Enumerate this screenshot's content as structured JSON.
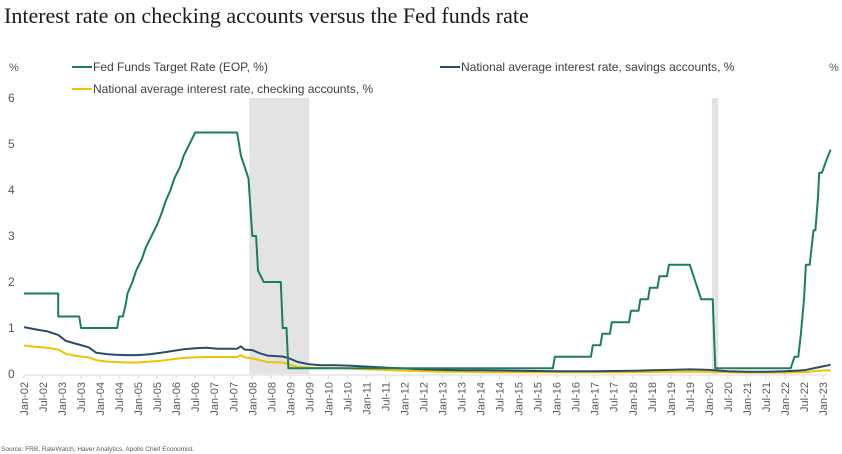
{
  "chart_data": {
    "type": "line",
    "title": "Interest rate on checking accounts versus the Fed funds rate",
    "ylabel_left": "%",
    "ylabel_right": "%",
    "xlabel": "",
    "ylim": [
      0,
      6
    ],
    "yticks": [
      0,
      1,
      2,
      3,
      4,
      5,
      6
    ],
    "xlim": [
      "2002-01",
      "2023-03"
    ],
    "xticks": [
      "Jan-02",
      "Jul-02",
      "Jan-03",
      "Jul-03",
      "Jan-04",
      "Jul-04",
      "Jan-05",
      "Jul-05",
      "Jan-06",
      "Jul-06",
      "Jan-07",
      "Jul-07",
      "Jan-08",
      "Jul-08",
      "Jan-09",
      "Jul-09",
      "Jan-10",
      "Jul-10",
      "Jan-11",
      "Jul-11",
      "Jan-12",
      "Jul-12",
      "Jan-13",
      "Jul-13",
      "Jan-14",
      "Jul-14",
      "Jan-15",
      "Jul-15",
      "Jan-16",
      "Jul-16",
      "Jan-17",
      "Jul-17",
      "Jan-18",
      "Jul-18",
      "Jan-19",
      "Jul-19",
      "Jan-20",
      "Jul-20",
      "Jan-21",
      "Jul-21",
      "Jan-22",
      "Jul-22",
      "Jan-23"
    ],
    "grid": false,
    "legend_position": "top",
    "recessions": [
      {
        "start": 2007.92,
        "end": 2009.5
      },
      {
        "start": 2020.08,
        "end": 2020.25
      }
    ],
    "series": [
      {
        "name": "Fed Funds Target Rate (EOP, %)",
        "color": "#1a7f5f",
        "points": [
          [
            2002.0,
            1.75
          ],
          [
            2002.9,
            1.75
          ],
          [
            2002.9,
            1.25
          ],
          [
            2003.45,
            1.25
          ],
          [
            2003.5,
            1.0
          ],
          [
            2004.45,
            1.0
          ],
          [
            2004.5,
            1.25
          ],
          [
            2004.6,
            1.25
          ],
          [
            2004.67,
            1.5
          ],
          [
            2004.72,
            1.75
          ],
          [
            2004.85,
            2.0
          ],
          [
            2004.95,
            2.25
          ],
          [
            2005.1,
            2.5
          ],
          [
            2005.2,
            2.75
          ],
          [
            2005.35,
            3.0
          ],
          [
            2005.5,
            3.25
          ],
          [
            2005.62,
            3.5
          ],
          [
            2005.72,
            3.75
          ],
          [
            2005.85,
            4.0
          ],
          [
            2005.95,
            4.25
          ],
          [
            2006.1,
            4.5
          ],
          [
            2006.2,
            4.75
          ],
          [
            2006.35,
            5.0
          ],
          [
            2006.5,
            5.25
          ],
          [
            2007.6,
            5.25
          ],
          [
            2007.7,
            4.75
          ],
          [
            2007.8,
            4.5
          ],
          [
            2007.9,
            4.25
          ],
          [
            2008.0,
            3.0
          ],
          [
            2008.1,
            3.0
          ],
          [
            2008.15,
            2.25
          ],
          [
            2008.3,
            2.0
          ],
          [
            2008.75,
            2.0
          ],
          [
            2008.8,
            1.0
          ],
          [
            2008.9,
            1.0
          ],
          [
            2008.95,
            0.125
          ],
          [
            2015.9,
            0.125
          ],
          [
            2015.95,
            0.375
          ],
          [
            2016.9,
            0.375
          ],
          [
            2016.95,
            0.625
          ],
          [
            2017.15,
            0.625
          ],
          [
            2017.2,
            0.875
          ],
          [
            2017.4,
            0.875
          ],
          [
            2017.45,
            1.125
          ],
          [
            2017.9,
            1.125
          ],
          [
            2017.95,
            1.375
          ],
          [
            2018.15,
            1.375
          ],
          [
            2018.2,
            1.625
          ],
          [
            2018.4,
            1.625
          ],
          [
            2018.45,
            1.875
          ],
          [
            2018.65,
            1.875
          ],
          [
            2018.7,
            2.125
          ],
          [
            2018.9,
            2.125
          ],
          [
            2018.95,
            2.375
          ],
          [
            2019.5,
            2.375
          ],
          [
            2019.6,
            2.125
          ],
          [
            2019.7,
            1.875
          ],
          [
            2019.8,
            1.625
          ],
          [
            2020.1,
            1.625
          ],
          [
            2020.17,
            0.125
          ],
          [
            2022.15,
            0.125
          ],
          [
            2022.25,
            0.375
          ],
          [
            2022.35,
            0.375
          ],
          [
            2022.42,
            0.875
          ],
          [
            2022.5,
            1.625
          ],
          [
            2022.55,
            2.375
          ],
          [
            2022.65,
            2.375
          ],
          [
            2022.75,
            3.125
          ],
          [
            2022.8,
            3.125
          ],
          [
            2022.87,
            3.875
          ],
          [
            2022.9,
            4.375
          ],
          [
            2022.97,
            4.375
          ],
          [
            2023.08,
            4.625
          ],
          [
            2023.2,
            4.875
          ]
        ]
      },
      {
        "name": "National average interest rate, savings accounts, %",
        "color": "#2e4a6b",
        "points": [
          [
            2002.0,
            1.02
          ],
          [
            2002.3,
            0.97
          ],
          [
            2002.6,
            0.93
          ],
          [
            2002.9,
            0.85
          ],
          [
            2003.1,
            0.72
          ],
          [
            2003.4,
            0.65
          ],
          [
            2003.7,
            0.58
          ],
          [
            2003.9,
            0.46
          ],
          [
            2004.2,
            0.43
          ],
          [
            2004.4,
            0.42
          ],
          [
            2004.7,
            0.41
          ],
          [
            2005.0,
            0.41
          ],
          [
            2005.3,
            0.43
          ],
          [
            2005.6,
            0.46
          ],
          [
            2005.9,
            0.5
          ],
          [
            2006.2,
            0.54
          ],
          [
            2006.5,
            0.56
          ],
          [
            2006.8,
            0.57
          ],
          [
            2007.1,
            0.55
          ],
          [
            2007.4,
            0.55
          ],
          [
            2007.6,
            0.55
          ],
          [
            2007.7,
            0.6
          ],
          [
            2007.8,
            0.53
          ],
          [
            2008.0,
            0.52
          ],
          [
            2008.2,
            0.45
          ],
          [
            2008.4,
            0.4
          ],
          [
            2008.8,
            0.38
          ],
          [
            2009.0,
            0.33
          ],
          [
            2009.2,
            0.26
          ],
          [
            2009.5,
            0.21
          ],
          [
            2009.8,
            0.19
          ],
          [
            2010.2,
            0.19
          ],
          [
            2010.6,
            0.18
          ],
          [
            2011.0,
            0.16
          ],
          [
            2011.5,
            0.14
          ],
          [
            2012.0,
            0.12
          ],
          [
            2012.5,
            0.1
          ],
          [
            2013.0,
            0.09
          ],
          [
            2013.5,
            0.08
          ],
          [
            2014.0,
            0.08
          ],
          [
            2015.0,
            0.07
          ],
          [
            2016.0,
            0.06
          ],
          [
            2017.0,
            0.06
          ],
          [
            2018.0,
            0.07
          ],
          [
            2018.5,
            0.08
          ],
          [
            2019.0,
            0.09
          ],
          [
            2019.5,
            0.1
          ],
          [
            2020.0,
            0.09
          ],
          [
            2020.5,
            0.06
          ],
          [
            2021.0,
            0.05
          ],
          [
            2021.5,
            0.05
          ],
          [
            2022.0,
            0.06
          ],
          [
            2022.5,
            0.08
          ],
          [
            2022.9,
            0.15
          ],
          [
            2023.2,
            0.2
          ]
        ]
      },
      {
        "name": "National average interest rate, checking accounts, %",
        "color": "#f2c200",
        "points": [
          [
            2002.0,
            0.62
          ],
          [
            2002.3,
            0.59
          ],
          [
            2002.6,
            0.57
          ],
          [
            2002.9,
            0.53
          ],
          [
            2003.1,
            0.44
          ],
          [
            2003.4,
            0.39
          ],
          [
            2003.7,
            0.36
          ],
          [
            2003.9,
            0.3
          ],
          [
            2004.2,
            0.27
          ],
          [
            2004.4,
            0.26
          ],
          [
            2004.7,
            0.25
          ],
          [
            2005.0,
            0.25
          ],
          [
            2005.3,
            0.27
          ],
          [
            2005.6,
            0.29
          ],
          [
            2005.9,
            0.32
          ],
          [
            2006.2,
            0.35
          ],
          [
            2006.5,
            0.36
          ],
          [
            2006.8,
            0.37
          ],
          [
            2007.1,
            0.37
          ],
          [
            2007.4,
            0.37
          ],
          [
            2007.6,
            0.37
          ],
          [
            2007.7,
            0.41
          ],
          [
            2007.8,
            0.36
          ],
          [
            2008.0,
            0.34
          ],
          [
            2008.2,
            0.3
          ],
          [
            2008.4,
            0.26
          ],
          [
            2008.8,
            0.25
          ],
          [
            2009.0,
            0.2
          ],
          [
            2009.2,
            0.15
          ],
          [
            2009.5,
            0.14
          ],
          [
            2009.8,
            0.13
          ],
          [
            2010.2,
            0.13
          ],
          [
            2010.6,
            0.12
          ],
          [
            2011.0,
            0.1
          ],
          [
            2011.5,
            0.09
          ],
          [
            2012.0,
            0.07
          ],
          [
            2012.5,
            0.06
          ],
          [
            2013.0,
            0.05
          ],
          [
            2013.5,
            0.05
          ],
          [
            2014.0,
            0.04
          ],
          [
            2015.0,
            0.04
          ],
          [
            2016.0,
            0.04
          ],
          [
            2017.0,
            0.04
          ],
          [
            2018.0,
            0.04
          ],
          [
            2019.0,
            0.05
          ],
          [
            2019.5,
            0.05
          ],
          [
            2020.0,
            0.05
          ],
          [
            2020.5,
            0.04
          ],
          [
            2021.0,
            0.03
          ],
          [
            2021.5,
            0.03
          ],
          [
            2022.0,
            0.03
          ],
          [
            2022.5,
            0.04
          ],
          [
            2022.9,
            0.07
          ],
          [
            2023.2,
            0.08
          ]
        ]
      }
    ],
    "source": "Source: FRB, RateWatch, Haver Analytics, Apollo Chief Economist."
  },
  "legend": [
    {
      "label": "Fed Funds Target Rate (EOP, %)",
      "color": "#1a7f5f"
    },
    {
      "label": "National average interest rate, savings accounts, %",
      "color": "#2e4a6b"
    },
    {
      "label": "National average interest rate, checking accounts, %",
      "color": "#f2c200"
    }
  ]
}
